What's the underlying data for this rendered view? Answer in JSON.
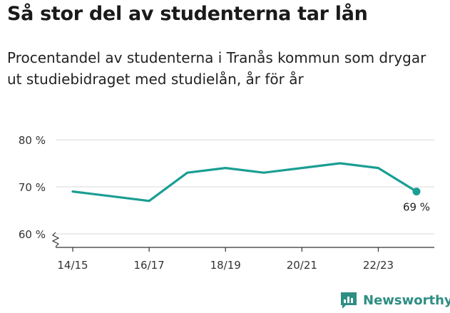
{
  "header": {
    "title": "Så stor del av studenterna tar lån",
    "subtitle": "Procentandel av studenterna i Tranås kommun som drygar ut studiebidraget med studielån, år för år"
  },
  "brand": {
    "name": "Newsworthy",
    "icon": "newsworthy-logo-icon",
    "color": "#2e8e83"
  },
  "chart_data": {
    "type": "line",
    "title": "Så stor del av studenterna tar lån",
    "subtitle": "Procentandel av studenterna i Tranås kommun som drygar ut studiebidraget med studielån, år för år",
    "xlabel": "",
    "ylabel": "",
    "x": [
      "14/15",
      "15/16",
      "16/17",
      "17/18",
      "18/19",
      "19/20",
      "20/21",
      "21/22",
      "22/23",
      "23/24"
    ],
    "x_tick_labels": [
      "14/15",
      "16/17",
      "18/19",
      "20/21",
      "22/23"
    ],
    "y_ticks": [
      60,
      70,
      80
    ],
    "y_tick_labels": [
      "60 %",
      "70 %",
      "80 %"
    ],
    "ylim": [
      60,
      80
    ],
    "y_axis_break": true,
    "grid": true,
    "series": [
      {
        "values": [
          69,
          68,
          67,
          73,
          74,
          73,
          74,
          75,
          74,
          69
        ],
        "color": "#1a9e93"
      }
    ],
    "end_label": "69 %"
  }
}
